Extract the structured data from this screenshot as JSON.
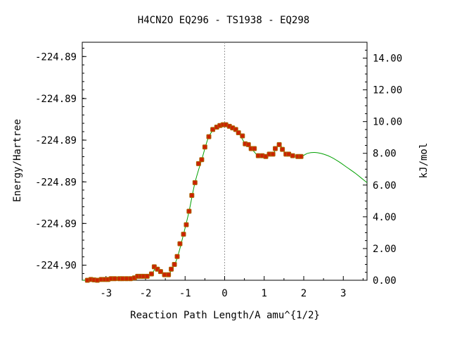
{
  "chart_data": {
    "type": "line",
    "title": "H4CN2O   EQ296 - TS1938 - EQ298",
    "xlabel": "Reaction Path Length/A amu^{1/2}",
    "ylabel_left": "Energy/Hartree",
    "ylabel_right": "kJ/mol",
    "xlim": [
      -3.6,
      3.6
    ],
    "ylim_kj": [
      0.0,
      15.0
    ],
    "x_ticks": [
      -3,
      -2,
      -1,
      0,
      1,
      2,
      3
    ],
    "x_tick_labels": [
      "-3",
      "-2",
      "-1",
      "0",
      "1",
      "2",
      "3"
    ],
    "left_ticks_kj": [
      0.95,
      3.58,
      6.2,
      8.83,
      11.45,
      14.1
    ],
    "left_tick_labels": [
      "-224.90",
      "-224.89",
      "-224.89",
      "-224.89",
      "-224.89",
      "-224.89"
    ],
    "right_ticks": [
      0,
      2,
      4,
      6,
      8,
      10,
      12,
      14
    ],
    "right_tick_labels": [
      "0.00",
      "2.00",
      "4.00",
      "6.00",
      "8.00",
      "10.00",
      "12.00",
      "14.00"
    ],
    "ts_marker_x": 0,
    "colors": {
      "curve": "#00a000",
      "points": "#cc2200",
      "point_border": "#aa6600",
      "ts_line": "#999999",
      "axis": "#000000"
    },
    "series": [
      {
        "role": "reaction-path-points",
        "x": [
          -3.47,
          -3.38,
          -3.3,
          -3.22,
          -3.12,
          -3.03,
          -2.95,
          -2.87,
          -2.78,
          -2.66,
          -2.58,
          -2.48,
          -2.38,
          -2.28,
          -2.2,
          -2.12,
          -2.05,
          -1.96,
          -1.85,
          -1.78,
          -1.7,
          -1.62,
          -1.52,
          -1.42,
          -1.35,
          -1.27,
          -1.2,
          -1.13,
          -1.04,
          -0.97,
          -0.9,
          -0.83,
          -0.75,
          -0.66,
          -0.58,
          -0.5,
          -0.4,
          -0.3,
          -0.2,
          -0.12,
          -0.04,
          0.03,
          0.12,
          0.2,
          0.28,
          0.35,
          0.45,
          0.52,
          0.6,
          0.67,
          0.75,
          0.85,
          0.95,
          1.04,
          1.13,
          1.22,
          1.28,
          1.38,
          1.46,
          1.55,
          1.62,
          1.72,
          1.85,
          1.93
        ],
        "y": [
          0.0,
          0.05,
          0.02,
          0.0,
          0.05,
          0.05,
          0.05,
          0.1,
          0.1,
          0.1,
          0.1,
          0.1,
          0.1,
          0.15,
          0.25,
          0.25,
          0.25,
          0.25,
          0.4,
          0.85,
          0.7,
          0.55,
          0.35,
          0.35,
          0.7,
          1.0,
          1.5,
          2.3,
          2.9,
          3.5,
          4.35,
          5.35,
          6.15,
          7.35,
          7.6,
          8.4,
          9.05,
          9.5,
          9.65,
          9.75,
          9.8,
          9.8,
          9.7,
          9.6,
          9.5,
          9.3,
          9.1,
          8.6,
          8.55,
          8.3,
          8.3,
          7.85,
          7.85,
          7.8,
          7.95,
          7.95,
          8.3,
          8.55,
          8.25,
          7.95,
          7.95,
          7.85,
          7.8,
          7.8
        ]
      },
      {
        "role": "interpolated-curve",
        "x": [
          -3.6,
          -3.3,
          -3.0,
          -2.7,
          -2.4,
          -2.2,
          -2.0,
          -1.85,
          -1.75,
          -1.65,
          -1.55,
          -1.45,
          -1.35,
          -1.2,
          -1.04,
          -0.9,
          -0.75,
          -0.58,
          -0.4,
          -0.2,
          0.0,
          0.2,
          0.35,
          0.52,
          0.67,
          0.85,
          1.04,
          1.22,
          1.38,
          1.55,
          1.72,
          1.93,
          2.1,
          2.3,
          2.5,
          2.7,
          2.9,
          3.1,
          3.3,
          3.5,
          3.6
        ],
        "y": [
          0.0,
          0.02,
          0.05,
          0.1,
          0.1,
          0.2,
          0.25,
          0.35,
          0.75,
          0.65,
          0.45,
          0.35,
          0.6,
          1.4,
          2.9,
          4.35,
          6.15,
          7.6,
          9.05,
          9.65,
          9.8,
          9.6,
          9.3,
          8.6,
          8.3,
          7.85,
          7.8,
          7.95,
          8.55,
          7.95,
          7.85,
          7.8,
          8.0,
          8.05,
          7.95,
          7.75,
          7.45,
          7.1,
          6.75,
          6.35,
          6.15
        ]
      }
    ]
  }
}
